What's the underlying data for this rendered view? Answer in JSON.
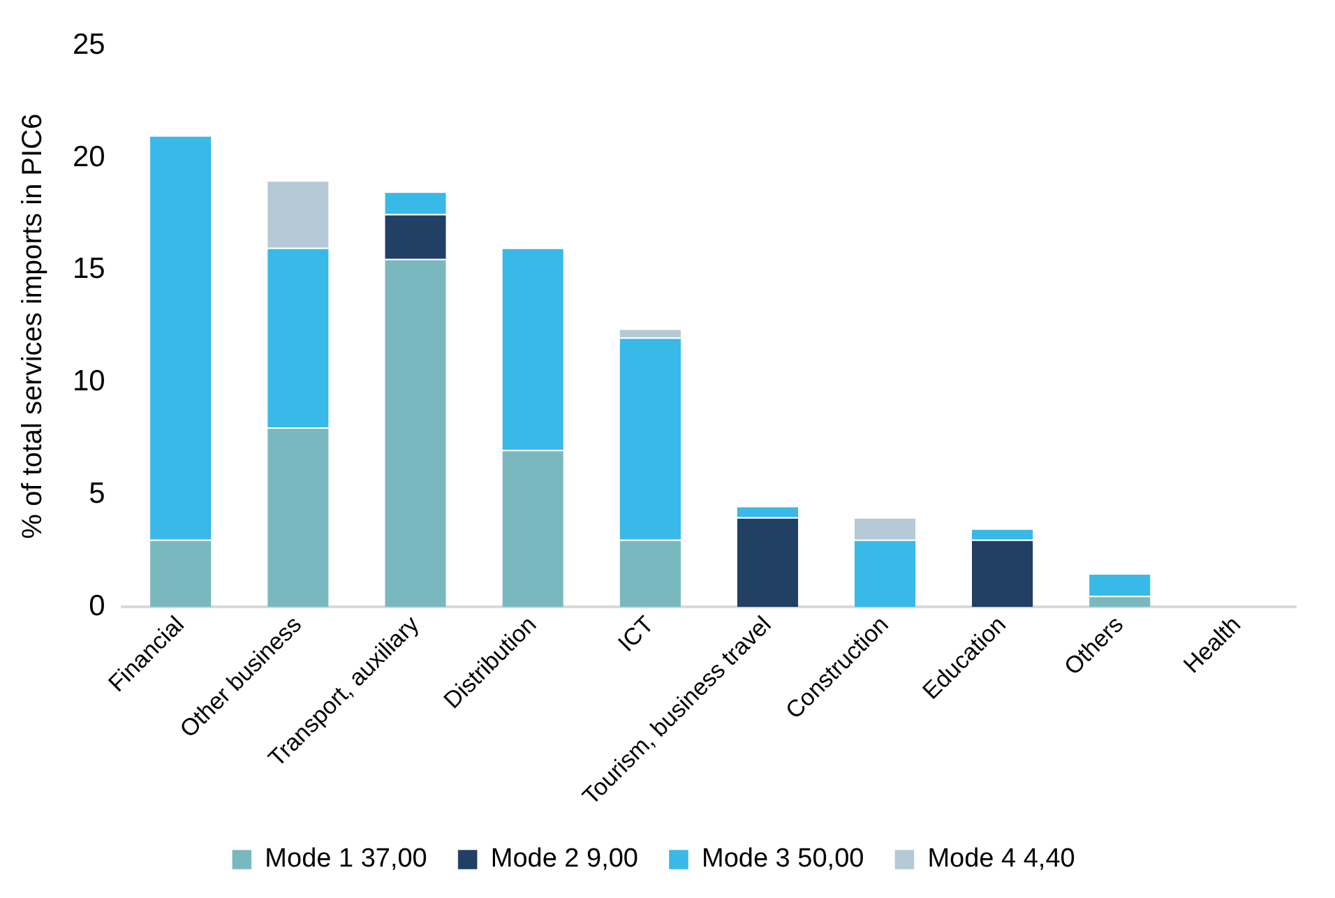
{
  "chart_data": {
    "type": "bar",
    "stacked": true,
    "ylabel": "% of total services imports in PIC6",
    "categories": [
      "Financial",
      "Other business",
      "Transport, auxiliary",
      "Distribution",
      "ICT",
      "Tourism, business travel",
      "Construction",
      "Education",
      "Others",
      "Health"
    ],
    "series": [
      {
        "name": "Mode 1 37,00",
        "color": "#7ab8c0",
        "values": [
          3,
          8,
          15.5,
          7,
          3,
          0,
          0,
          0,
          0.5,
          0
        ]
      },
      {
        "name": "Mode 2 9,00",
        "color": "#223f64",
        "values": [
          0,
          0,
          2,
          0,
          0,
          4,
          0,
          3,
          0,
          0
        ]
      },
      {
        "name": "Mode 3 50,00",
        "color": "#38b9e8",
        "values": [
          18,
          8,
          1,
          9,
          9,
          0.5,
          3,
          0.5,
          1,
          0
        ]
      },
      {
        "name": "Mode 4 4,40",
        "color": "#b5c9d6",
        "values": [
          0,
          3,
          0,
          0,
          0.4,
          0,
          1,
          0,
          0,
          0
        ]
      }
    ],
    "ylim": [
      0,
      25
    ],
    "yticks": [
      0,
      5,
      10,
      15,
      20,
      25
    ],
    "grid": false,
    "legend": "bottom"
  }
}
